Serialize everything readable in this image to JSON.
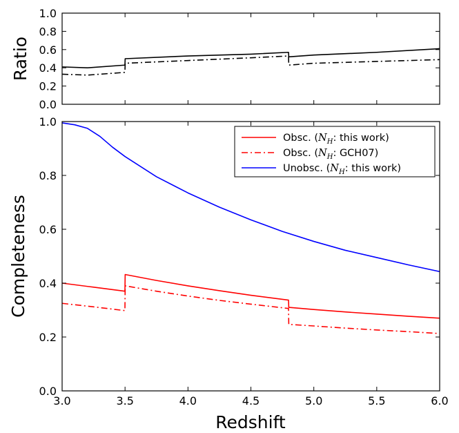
{
  "chart_data": [
    {
      "panel": "ratio",
      "type": "line",
      "ylabel": "Ratio",
      "xlim": [
        3.0,
        6.0
      ],
      "ylim": [
        0.0,
        1.0
      ],
      "yticks": [
        "0.0",
        "0.2",
        "0.4",
        "0.6",
        "0.8",
        "1.0"
      ],
      "grid": false,
      "series": [
        {
          "style": "solid",
          "color": "#000000",
          "x": [
            3.0,
            3.2,
            3.499,
            3.501,
            4.0,
            4.5,
            4.799,
            4.801,
            5.0,
            5.5,
            6.0
          ],
          "y": [
            0.41,
            0.4,
            0.43,
            0.5,
            0.53,
            0.55,
            0.57,
            0.52,
            0.54,
            0.57,
            0.61
          ]
        },
        {
          "style": "dashdot",
          "color": "#000000",
          "x": [
            3.0,
            3.2,
            3.499,
            3.501,
            4.0,
            4.5,
            4.799,
            4.801,
            5.0,
            5.5,
            6.0
          ],
          "y": [
            0.33,
            0.32,
            0.35,
            0.45,
            0.48,
            0.51,
            0.53,
            0.43,
            0.45,
            0.47,
            0.49
          ]
        }
      ]
    },
    {
      "panel": "completeness",
      "type": "line",
      "xlabel": "Redshift",
      "ylabel": "Completeness",
      "xlim": [
        3.0,
        6.0
      ],
      "ylim": [
        0.0,
        1.0
      ],
      "xticks": [
        "3.0",
        "3.5",
        "4.0",
        "4.5",
        "5.0",
        "5.5",
        "6.0"
      ],
      "yticks": [
        "0.0",
        "0.2",
        "0.4",
        "0.6",
        "0.8",
        "1.0"
      ],
      "legend_position": "top-right",
      "grid": false,
      "series": [
        {
          "name": "Obsc. (N_H: this work)",
          "style": "solid",
          "color": "#ff0000",
          "x": [
            3.0,
            3.25,
            3.499,
            3.501,
            3.75,
            4.0,
            4.25,
            4.5,
            4.799,
            4.801,
            5.0,
            5.25,
            5.5,
            5.75,
            6.0
          ],
          "y": [
            0.4,
            0.385,
            0.37,
            0.432,
            0.41,
            0.39,
            0.372,
            0.355,
            0.337,
            0.31,
            0.302,
            0.293,
            0.285,
            0.277,
            0.27
          ]
        },
        {
          "name": "Obsc. (N_H: GCH07)",
          "style": "dashdot",
          "color": "#ff0000",
          "x": [
            3.0,
            3.25,
            3.499,
            3.501,
            3.75,
            4.0,
            4.25,
            4.5,
            4.799,
            4.801,
            5.0,
            5.25,
            5.5,
            5.75,
            6.0
          ],
          "y": [
            0.325,
            0.312,
            0.298,
            0.39,
            0.37,
            0.352,
            0.336,
            0.322,
            0.306,
            0.247,
            0.241,
            0.233,
            0.226,
            0.22,
            0.213
          ]
        },
        {
          "name": "Unobsc. (N_H: this work)",
          "style": "solid",
          "color": "#0000ff",
          "x": [
            3.0,
            3.1,
            3.2,
            3.3,
            3.4,
            3.5,
            3.75,
            4.0,
            4.25,
            4.5,
            4.75,
            5.0,
            5.25,
            5.5,
            5.75,
            6.0
          ],
          "y": [
            0.995,
            0.988,
            0.975,
            0.945,
            0.905,
            0.87,
            0.795,
            0.735,
            0.682,
            0.635,
            0.592,
            0.555,
            0.522,
            0.495,
            0.468,
            0.443
          ]
        }
      ]
    }
  ],
  "legend": {
    "entries": [
      {
        "prefix": "Obsc. (",
        "var": "N",
        "sub": "H",
        "suffix": ": this work)"
      },
      {
        "prefix": "Obsc. (",
        "var": "N",
        "sub": "H",
        "suffix": ": GCH07)"
      },
      {
        "prefix": "Unobsc. (",
        "var": "N",
        "sub": "H",
        "suffix": ": this work)"
      }
    ]
  }
}
